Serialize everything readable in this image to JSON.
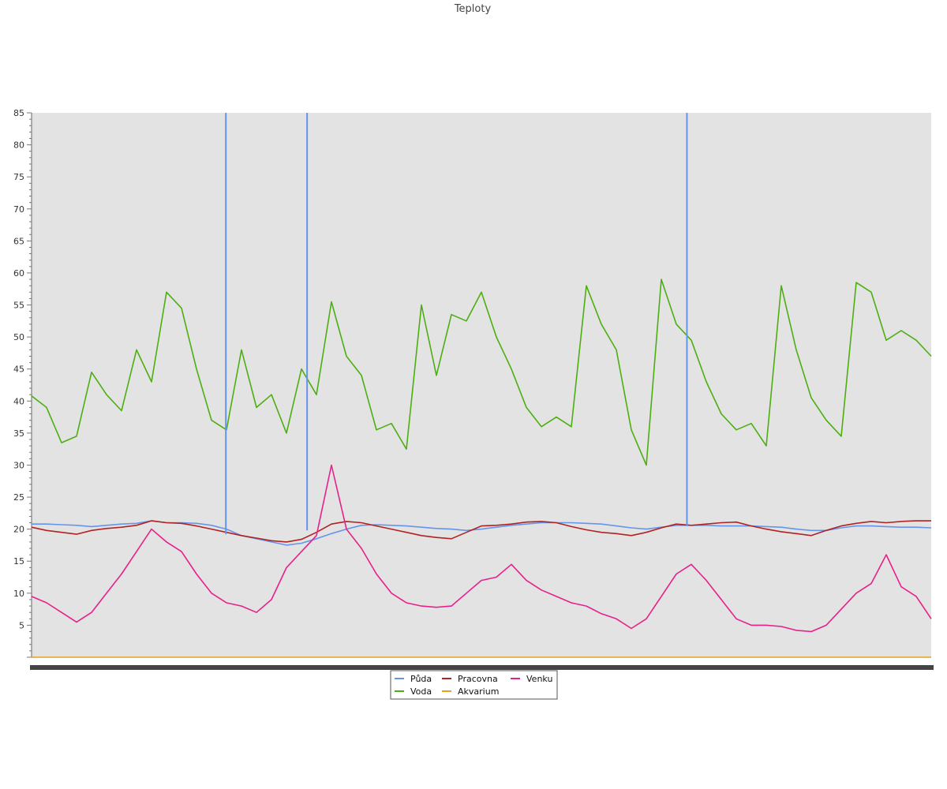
{
  "chart_data": {
    "type": "line",
    "title": "Teploty",
    "xlabel": "",
    "ylabel": "",
    "ylim": [
      0,
      85
    ],
    "yticks": [
      5,
      10,
      15,
      20,
      25,
      30,
      35,
      40,
      45,
      50,
      55,
      60,
      65,
      70,
      75,
      80,
      85
    ],
    "x_ticks_note": "",
    "grid": false,
    "legend_position": "bottom",
    "x": [
      0,
      12,
      24,
      36,
      48,
      60,
      72,
      84,
      96,
      108,
      120,
      132,
      144,
      156,
      168,
      180,
      192,
      204,
      216,
      228,
      240,
      252,
      264,
      276,
      288,
      300,
      312,
      324,
      336,
      348,
      360,
      372,
      384,
      396,
      408,
      420,
      432,
      444,
      456,
      468,
      480,
      492,
      504,
      516,
      528,
      540,
      552,
      564,
      576,
      588,
      600,
      612,
      624,
      636,
      648,
      660,
      672,
      684,
      696,
      708,
      720
    ],
    "series": [
      {
        "name": "Půda",
        "color": "#6495ed",
        "values": [
          20.8,
          20.8,
          20.7,
          20.6,
          20.4,
          20.6,
          20.8,
          20.9,
          21.3,
          21.0,
          21.0,
          20.9,
          20.6,
          20.0,
          19.0,
          18.5,
          18.0,
          17.5,
          17.8,
          18.5,
          19.3,
          20.0,
          20.6,
          20.7,
          20.6,
          20.5,
          20.3,
          20.1,
          20.0,
          19.8,
          20.0,
          20.3,
          20.6,
          20.8,
          21.0,
          21.0,
          21.0,
          20.9,
          20.8,
          20.5,
          20.2,
          20.0,
          20.3,
          20.6,
          20.6,
          20.6,
          20.5,
          20.5,
          20.5,
          20.4,
          20.3,
          20.0,
          19.8,
          19.8,
          20.2,
          20.5,
          20.5,
          20.4,
          20.3,
          20.3,
          20.2
        ]
      },
      {
        "name": "Voda",
        "color": "#4caf10",
        "values": [
          40.8,
          39.0,
          33.5,
          34.5,
          44.5,
          41.0,
          38.5,
          48.0,
          43.0,
          57.0,
          54.5,
          45.0,
          37.0,
          35.5,
          48.0,
          39.0,
          41.0,
          35.0,
          45.0,
          41.0,
          55.5,
          47.0,
          44.0,
          35.5,
          36.5,
          32.5,
          55.0,
          44.0,
          53.5,
          52.5,
          57.0,
          50.0,
          45.0,
          39.0,
          36.0,
          37.5,
          36.0,
          58.0,
          52.0,
          48.0,
          35.5,
          30.0,
          59.0,
          52.0,
          49.5,
          43.0,
          38.0,
          35.5,
          36.5,
          33.0,
          58.0,
          48.0,
          40.5,
          37.0,
          34.5,
          58.5,
          57.0,
          49.5,
          51.0,
          49.5,
          47.0
        ]
      },
      {
        "name": "Pracovna",
        "color": "#b22222",
        "values": [
          20.3,
          19.8,
          19.5,
          19.2,
          19.8,
          20.1,
          20.3,
          20.6,
          21.3,
          21.0,
          20.9,
          20.5,
          20.0,
          19.5,
          19.0,
          18.6,
          18.2,
          18.0,
          18.4,
          19.5,
          20.8,
          21.2,
          21.0,
          20.5,
          20.0,
          19.5,
          19.0,
          18.7,
          18.5,
          19.5,
          20.5,
          20.6,
          20.8,
          21.1,
          21.2,
          21.0,
          20.4,
          19.9,
          19.5,
          19.3,
          19.0,
          19.5,
          20.2,
          20.8,
          20.6,
          20.8,
          21.0,
          21.1,
          20.5,
          20.0,
          19.6,
          19.3,
          19.0,
          19.8,
          20.5,
          20.9,
          21.2,
          21.0,
          21.2,
          21.3,
          21.3
        ]
      },
      {
        "name": "Akvarium",
        "color": "#e8a020",
        "values": [
          0,
          0,
          0,
          0,
          0,
          0,
          0,
          0,
          0,
          0,
          0,
          0,
          0,
          0,
          0,
          0,
          0,
          0,
          0,
          0,
          0,
          0,
          0,
          0,
          0,
          0,
          0,
          0,
          0,
          0,
          0,
          0,
          0,
          0,
          0,
          0,
          0,
          0,
          0,
          0,
          0,
          0,
          0,
          0,
          0,
          0,
          0,
          0,
          0,
          0,
          0,
          0,
          0,
          0,
          0,
          0,
          0,
          0,
          0,
          0,
          0
        ]
      },
      {
        "name": "Venku",
        "color": "#e8208c",
        "values": [
          9.5,
          8.5,
          7.0,
          5.5,
          7.0,
          10.0,
          13.0,
          16.5,
          20.0,
          18.0,
          16.5,
          13.0,
          10.0,
          8.5,
          8.0,
          7.0,
          9.0,
          14.0,
          16.5,
          19.0,
          30.0,
          20.0,
          17.0,
          13.0,
          10.0,
          8.5,
          8.0,
          7.8,
          8.0,
          10.0,
          12.0,
          12.5,
          14.5,
          12.0,
          10.5,
          9.5,
          8.5,
          8.0,
          6.8,
          6.0,
          4.5,
          6.0,
          9.5,
          13.0,
          14.5,
          12.0,
          9.0,
          6.0,
          5.0,
          5.0,
          4.8,
          4.2,
          4.0,
          5.0,
          7.5,
          10.0,
          11.5,
          16.0,
          11.0,
          9.5,
          6.0
        ]
      }
    ],
    "spikes": [
      {
        "series": "Půda",
        "x": 155.5,
        "from": 19.2,
        "to": 85
      },
      {
        "series": "Půda",
        "x": 220.5,
        "from": 19.8,
        "to": 85
      },
      {
        "series": "Půda",
        "x": 524.5,
        "from": 20.5,
        "to": 85
      }
    ]
  }
}
